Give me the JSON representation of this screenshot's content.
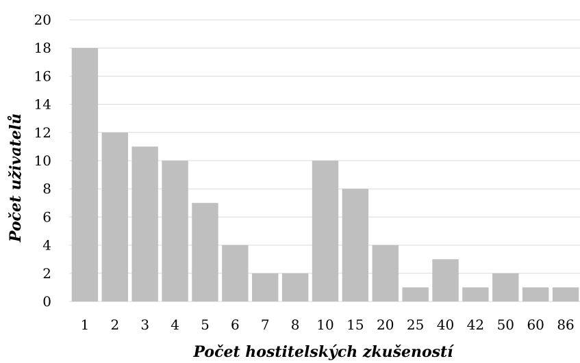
{
  "chart_data": {
    "type": "bar",
    "categories": [
      "1",
      "2",
      "3",
      "4",
      "5",
      "6",
      "7",
      "8",
      "10",
      "15",
      "20",
      "25",
      "40",
      "42",
      "50",
      "60",
      "86"
    ],
    "values": [
      18,
      12,
      11,
      10,
      7,
      4,
      2,
      2,
      10,
      8,
      4,
      1,
      3,
      1,
      2,
      1,
      1
    ],
    "xlabel": "Počet hostitelských zkušeností",
    "ylabel": "Počet uživatelů",
    "ylim": [
      0,
      20
    ],
    "yticks": [
      0,
      2,
      4,
      6,
      8,
      10,
      12,
      14,
      16,
      18,
      20
    ],
    "grid": true,
    "legend": "none",
    "bar_color": "#bfbfbf",
    "grid_color": "#d9d9d9"
  }
}
